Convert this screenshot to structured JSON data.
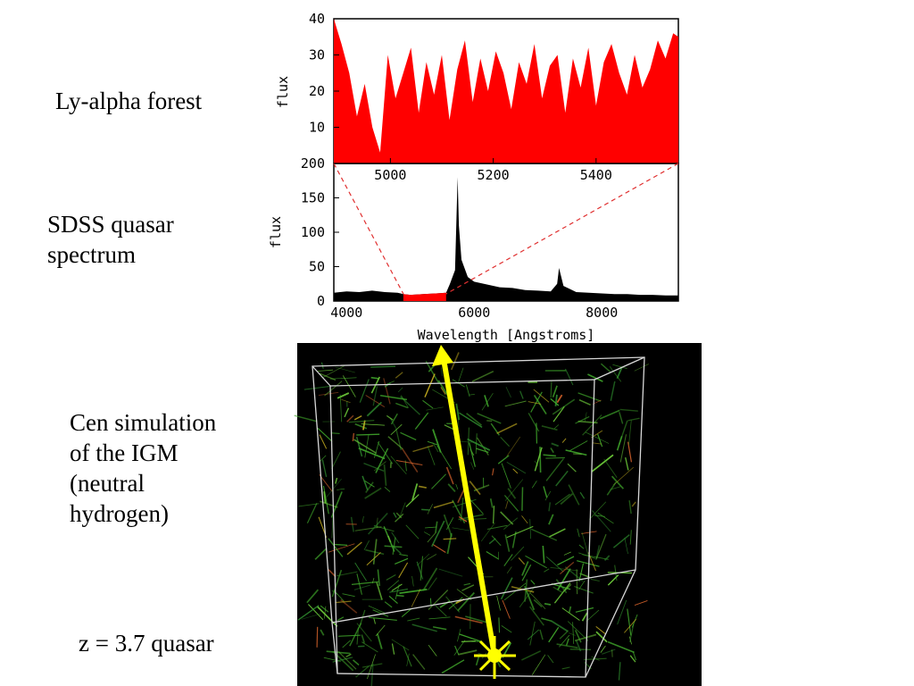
{
  "labels": {
    "lya_forest": "Ly-alpha forest",
    "sdss_line1": "SDSS quasar",
    "sdss_line2": "spectrum",
    "cen_line1": "Cen simulation",
    "cen_line2": "of the IGM",
    "cen_line3": "(neutral",
    "cen_line4": "hydrogen)",
    "quasar": "z = 3.7 quasar"
  },
  "colors": {
    "forest": "#ff0000",
    "spectrum": "#000000",
    "sim_background": "#000000",
    "filaments": "#3fa52a",
    "sightline": "#ffff00"
  },
  "chart_data": [
    {
      "type": "area",
      "panel": "top",
      "xlabel": "",
      "ylabel": "flux",
      "xlim": [
        4890,
        5560
      ],
      "ylim": [
        0,
        40
      ],
      "xticks": [
        5000,
        5200,
        5400
      ],
      "yticks": [
        10,
        20,
        30,
        40
      ],
      "x": [
        4890,
        4905,
        4920,
        4935,
        4950,
        4965,
        4980,
        4995,
        5010,
        5025,
        5040,
        5055,
        5070,
        5085,
        5100,
        5115,
        5130,
        5145,
        5160,
        5175,
        5190,
        5205,
        5220,
        5235,
        5250,
        5265,
        5280,
        5295,
        5310,
        5325,
        5340,
        5355,
        5370,
        5385,
        5400,
        5415,
        5430,
        5445,
        5460,
        5475,
        5490,
        5505,
        5520,
        5535,
        5550,
        5560
      ],
      "y": [
        40,
        33,
        25,
        13,
        22,
        10,
        3,
        30,
        18,
        25,
        32,
        14,
        28,
        19,
        30,
        12,
        26,
        34,
        17,
        29,
        20,
        31,
        25,
        15,
        28,
        22,
        33,
        18,
        27,
        30,
        14,
        29,
        21,
        32,
        16,
        28,
        33,
        25,
        19,
        30,
        21,
        26,
        34,
        29,
        36,
        35
      ]
    },
    {
      "type": "area",
      "panel": "bottom",
      "xlabel": "Wavelength [Angstroms]",
      "ylabel": "flux",
      "xlim": [
        3800,
        9200
      ],
      "ylim": [
        0,
        200
      ],
      "xticks": [
        4000,
        6000,
        8000
      ],
      "yticks": [
        0,
        50,
        100,
        150,
        200
      ],
      "highlight_range": [
        4890,
        5560
      ],
      "x": [
        3800,
        4000,
        4200,
        4400,
        4600,
        4800,
        4890,
        5000,
        5200,
        5400,
        5560,
        5620,
        5700,
        5740,
        5760,
        5800,
        5900,
        6000,
        6200,
        6400,
        6600,
        6800,
        7000,
        7200,
        7300,
        7330,
        7400,
        7600,
        7800,
        8000,
        8200,
        8400,
        8600,
        8800,
        9000,
        9200
      ],
      "y": [
        12,
        14,
        13,
        15,
        13,
        12,
        10,
        9,
        10,
        11,
        12,
        25,
        45,
        180,
        110,
        60,
        35,
        28,
        24,
        20,
        19,
        16,
        15,
        14,
        25,
        48,
        22,
        13,
        12,
        11,
        10,
        10,
        9,
        9,
        8,
        8
      ]
    }
  ]
}
